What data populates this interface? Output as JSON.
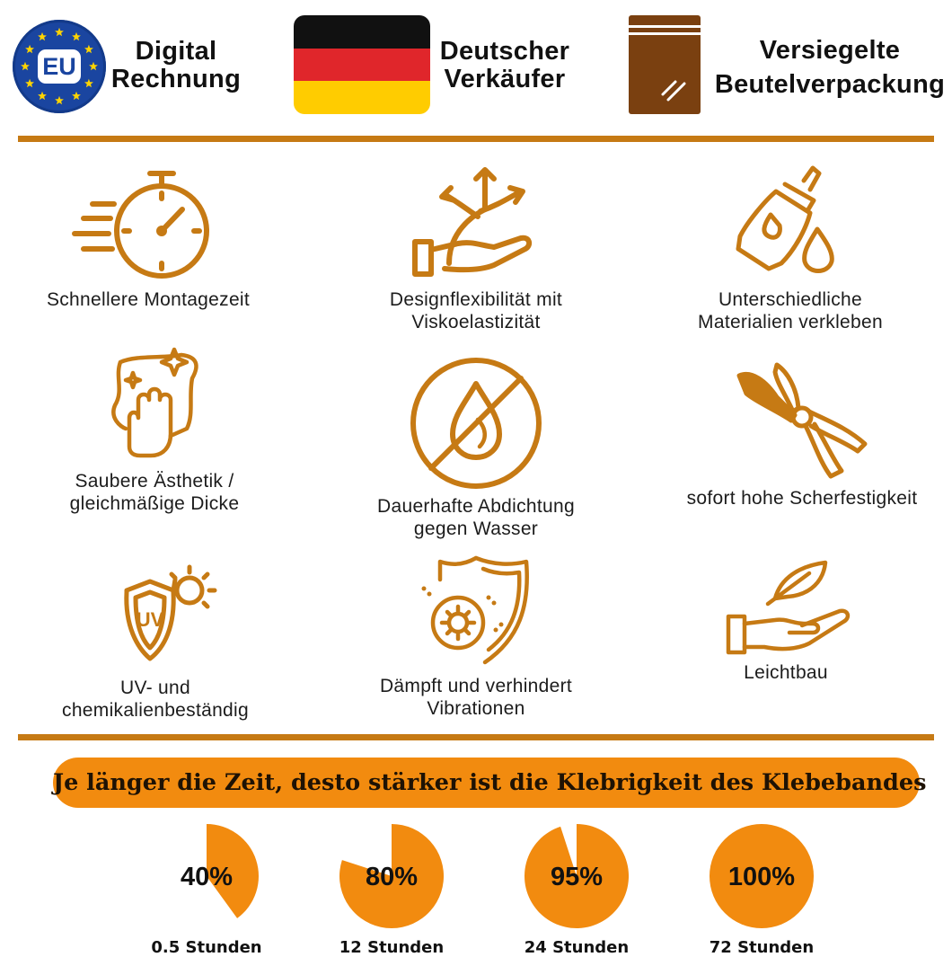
{
  "colors": {
    "accent": "#c67a14",
    "orange": "#f28b0f",
    "eu_blue": "#1a45a0",
    "bag_brown": "#7a4010",
    "flag": [
      "#111111",
      "#e0262b",
      "#ffcc00"
    ]
  },
  "header": {
    "eu_badge": "EU",
    "items": [
      {
        "icon": "eu-stars-icon",
        "lines": [
          "Digital",
          "Rechnung"
        ]
      },
      {
        "icon": "german-flag-icon",
        "lines": [
          "Deutscher",
          "Verkäufer"
        ]
      },
      {
        "icon": "sealed-bag-icon",
        "lines": [
          "Versiegelte",
          "Beutelverpackung"
        ]
      }
    ]
  },
  "features": [
    {
      "icon": "stopwatch-icon",
      "lines": [
        "Schnellere Montagezeit"
      ]
    },
    {
      "icon": "flexible-hand-arrows-icon",
      "lines": [
        "Designflexibilität mit",
        "Viskoelastizität"
      ]
    },
    {
      "icon": "glue-bottle-drop-icon",
      "lines": [
        "Unterschiedliche",
        "Materialien verkleben"
      ]
    },
    {
      "icon": "clean-glove-cloth-icon",
      "lines": [
        "Saubere Ästhetik /",
        "gleichmäßige Dicke"
      ]
    },
    {
      "icon": "no-water-drop-icon",
      "lines": [
        "Dauerhafte Abdichtung",
        "gegen Wasser"
      ]
    },
    {
      "icon": "pruning-shears-icon",
      "lines": [
        "sofort hohe Scherfestigkeit"
      ]
    },
    {
      "icon": "uv-shield-sun-icon",
      "lines": [
        "UV- und",
        "chemikalienbeständig"
      ]
    },
    {
      "icon": "vibration-shield-icon",
      "lines": [
        "Dämpft und verhindert",
        "Vibrationen"
      ]
    },
    {
      "icon": "feather-hand-icon",
      "lines": [
        "Leichtbau"
      ]
    }
  ],
  "banner": "Je länger die Zeit, desto stärker ist die Klebrigkeit des Klebebandes",
  "chart_data": {
    "type": "pie",
    "title": "Je länger die Zeit, desto stärker ist die Klebrigkeit des Klebebandes",
    "categories": [
      "0.5 Stunden",
      "12 Stunden",
      "24 Stunden",
      "72 Stunden"
    ],
    "values": [
      40,
      80,
      95,
      100
    ],
    "value_labels": [
      "40%",
      "80%",
      "95%",
      "100%"
    ],
    "unit": "%"
  }
}
